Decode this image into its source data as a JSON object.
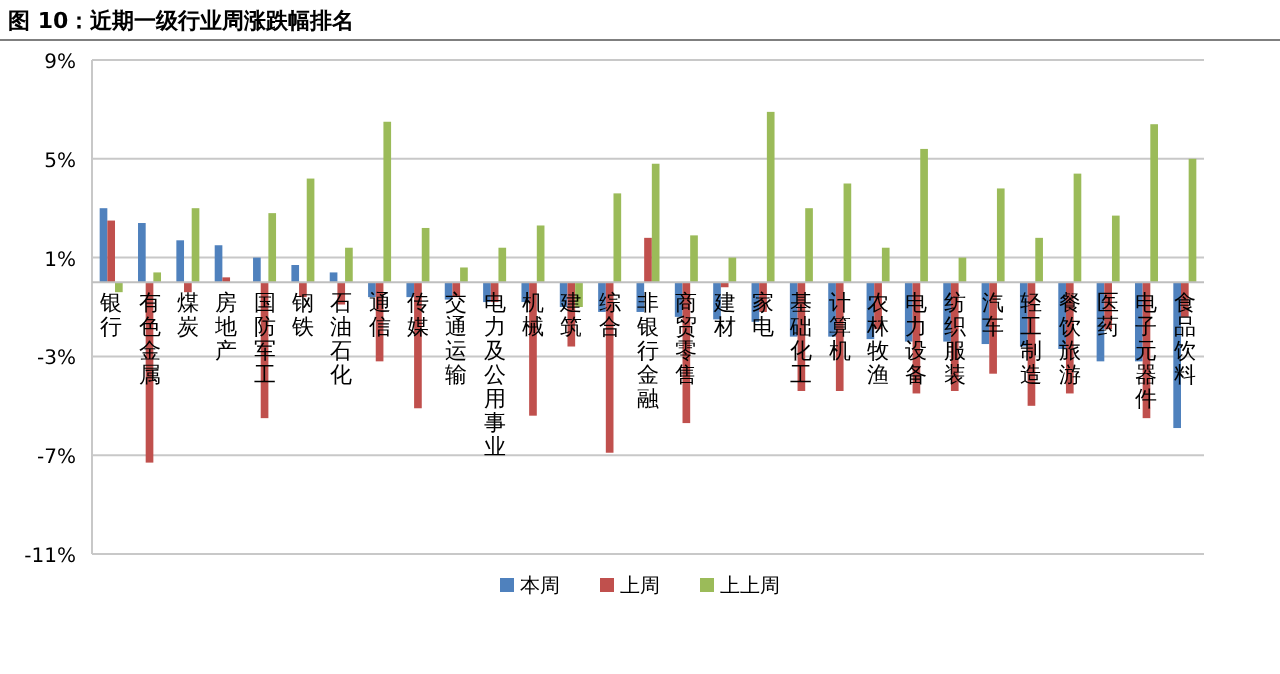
{
  "chart_data": {
    "type": "bar",
    "title": "图 10：近期一级行业周涨跌幅排名",
    "categories": [
      "银行",
      "有色金属",
      "煤炭",
      "房地产",
      "国防军工",
      "钢铁",
      "石油石化",
      "通信",
      "传媒",
      "交通运输",
      "电力及公用事业",
      "机械",
      "建筑",
      "综合",
      "非银行金融",
      "商贸零售",
      "建材",
      "家电",
      "基础化工",
      "计算机",
      "农林牧渔",
      "电力设备",
      "纺织服装",
      "汽车",
      "轻工制造",
      "餐饮旅游",
      "医药",
      "电子元器件",
      "食品饮料"
    ],
    "series": [
      {
        "name": "本周",
        "color": "#4f81bd",
        "values": [
          3.0,
          2.4,
          1.7,
          1.5,
          1.0,
          0.7,
          0.4,
          -0.6,
          -0.6,
          -0.7,
          -0.8,
          -0.8,
          -1.0,
          -1.2,
          -1.2,
          -1.4,
          -1.5,
          -1.6,
          -2.2,
          -2.2,
          -2.3,
          -2.4,
          -2.4,
          -2.5,
          -2.6,
          -2.7,
          -3.2,
          -3.2,
          -5.9
        ]
      },
      {
        "name": "上周",
        "color": "#c0504d",
        "values": [
          2.5,
          -7.3,
          -0.4,
          0.2,
          -5.5,
          -0.6,
          -0.9,
          -3.2,
          -5.1,
          -0.6,
          -0.8,
          -5.4,
          -2.6,
          -6.9,
          1.8,
          -5.7,
          -0.2,
          -1.2,
          -4.4,
          -4.4,
          -1.9,
          -4.5,
          -4.4,
          -3.7,
          -5.0,
          -4.5,
          -1.9,
          -5.5,
          -1.4
        ]
      },
      {
        "name": "上上周",
        "color": "#9bbb59",
        "values": [
          -0.4,
          0.4,
          3.0,
          null,
          2.8,
          4.2,
          1.4,
          6.5,
          2.2,
          0.6,
          1.4,
          2.3,
          -1.0,
          3.6,
          4.8,
          1.9,
          1.0,
          6.9,
          3.0,
          4.0,
          1.4,
          5.4,
          1.0,
          3.8,
          1.8,
          4.4,
          2.7,
          6.4,
          5.0
        ]
      }
    ],
    "ylim": [
      -11,
      9
    ],
    "yticks": [
      {
        "value": 9,
        "label": "9%"
      },
      {
        "value": 5,
        "label": "5%"
      },
      {
        "value": 1,
        "label": "1%"
      },
      {
        "value": -3,
        "label": "-3%"
      },
      {
        "value": -7,
        "label": "-7%"
      },
      {
        "value": -11,
        "label": "-11%"
      }
    ],
    "grid": "y",
    "legend": "bottom"
  }
}
